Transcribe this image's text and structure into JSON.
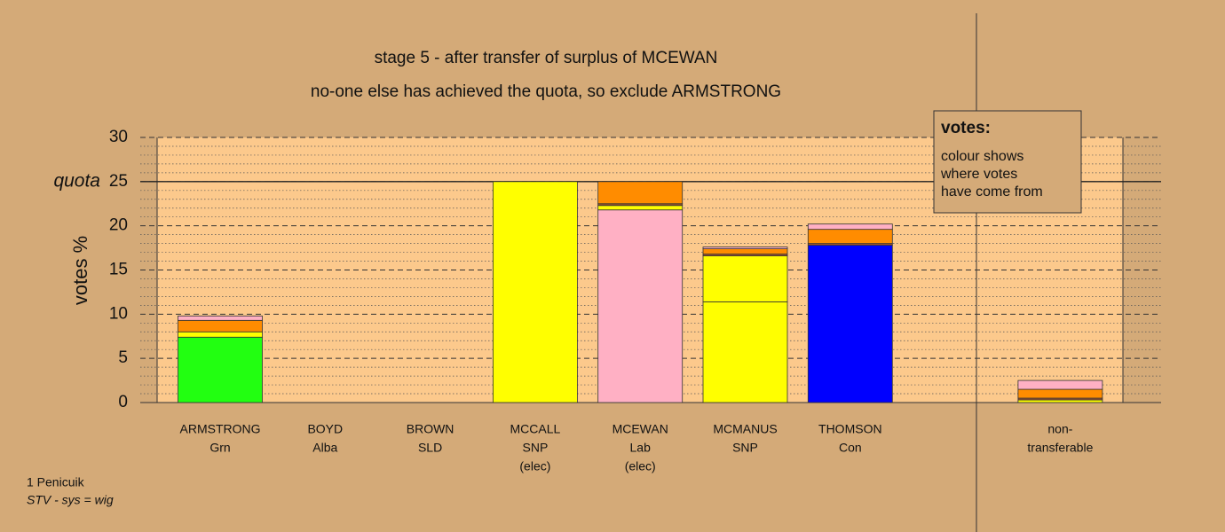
{
  "chart_data": {
    "type": "stacked_bar",
    "title": "stage 5 - after transfer of surplus of MCEWAN",
    "subtitle": "no-one else has achieved the quota, so exclude ARMSTRONG",
    "y_label": "votes %",
    "quota_label": "quota",
    "quota": 25,
    "categories": [
      [
        "ARMSTRONG",
        "Grn"
      ],
      [
        "BOYD",
        "Alba"
      ],
      [
        "BROWN",
        "SLD"
      ],
      [
        "MCCALL",
        "SNP",
        "(elec)"
      ],
      [
        "MCEWAN",
        "Lab",
        "(elec)"
      ],
      [
        "MCMANUS",
        "SNP"
      ],
      [
        "THOMSON",
        "Con"
      ],
      [
        "non-",
        "transferable"
      ]
    ],
    "series": [
      {
        "color": "#22ff11",
        "values": [
          7.4,
          0,
          0,
          0,
          0,
          0,
          0,
          0
        ]
      },
      {
        "color": "#ffb0c4",
        "values": [
          0,
          0,
          0,
          0,
          21.8,
          0,
          0,
          0
        ]
      },
      {
        "color": "#ffff00",
        "values": [
          0,
          0,
          0,
          25,
          0,
          11.4,
          0,
          0
        ]
      },
      {
        "color": "#0000ff",
        "values": [
          0,
          0,
          0,
          0,
          0,
          0,
          17.8,
          0
        ]
      },
      {
        "color": "#ffff00",
        "values": [
          0.6,
          0,
          0,
          0,
          0.5,
          5.2,
          0,
          0.3
        ]
      },
      {
        "color": "#a0522d",
        "values": [
          0,
          0,
          0,
          0,
          0.2,
          0.2,
          0.2,
          0.2
        ]
      },
      {
        "color": "#ff8c00",
        "values": [
          1.3,
          0,
          0,
          0,
          2.5,
          0.6,
          1.6,
          1.0
        ]
      },
      {
        "color": "#ffb0c4",
        "values": [
          0.5,
          0,
          0,
          0,
          0,
          0.2,
          0.6,
          1.0
        ]
      }
    ],
    "ylim": [
      0,
      30
    ],
    "yticks": [
      0,
      5,
      10,
      15,
      20,
      25,
      30
    ],
    "yminorticks": [
      1,
      2,
      3,
      4,
      6,
      7,
      8,
      9,
      11,
      12,
      13,
      14,
      16,
      17,
      18,
      19,
      21,
      22,
      23,
      24,
      26,
      27,
      28,
      29
    ],
    "grid": true,
    "legend": {
      "title": "votes:",
      "lines": [
        "colour shows",
        "where votes",
        "have come from"
      ]
    },
    "footer": {
      "place": "1 Penicuik",
      "system": "STV - sys = wig"
    }
  }
}
